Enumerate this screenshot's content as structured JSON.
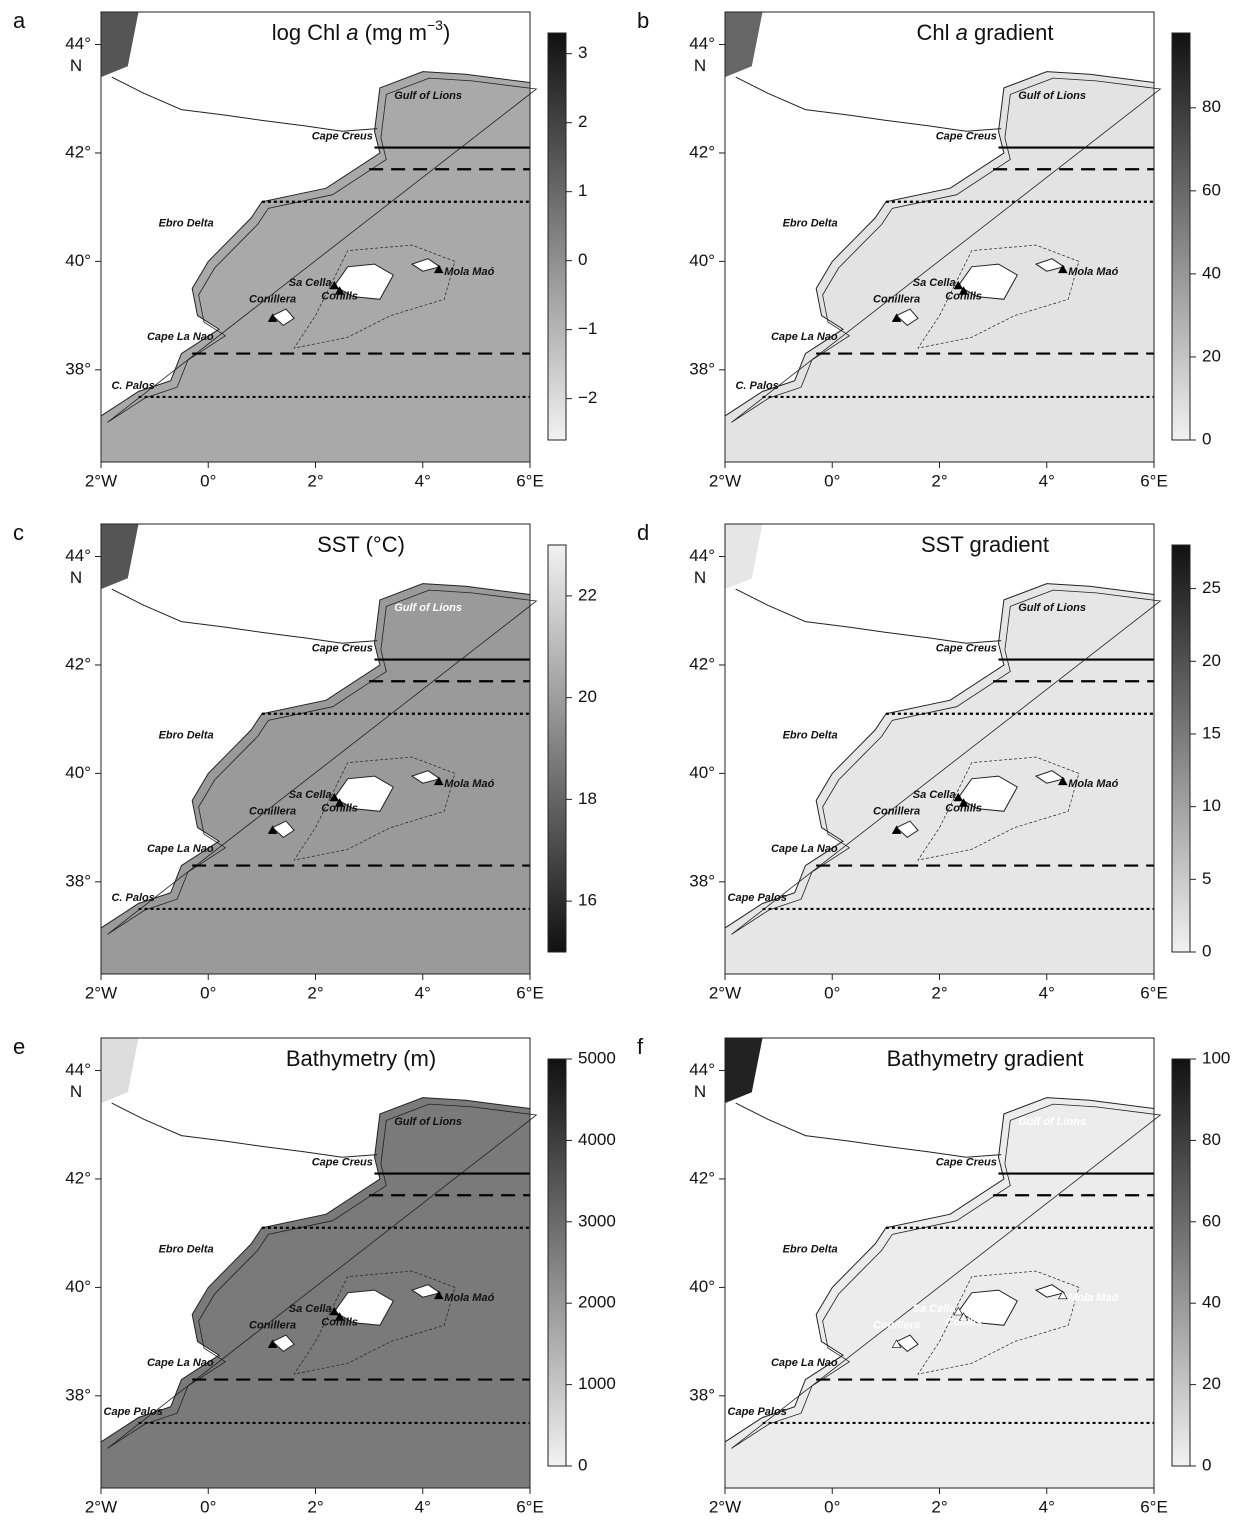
{
  "axes": {
    "xlim": [
      -2,
      6
    ],
    "ylim": [
      36.3,
      44.6
    ],
    "xticks": [
      {
        "value": -2,
        "label": "2°W"
      },
      {
        "value": 0,
        "label": "0°"
      },
      {
        "value": 2,
        "label": "2°"
      },
      {
        "value": 4,
        "label": "4°"
      },
      {
        "value": 6,
        "label": "6°E"
      }
    ],
    "yticks": [
      {
        "value": 38,
        "label": "38°"
      },
      {
        "value": 40,
        "label": "40°"
      },
      {
        "value": 42,
        "label": "42°"
      },
      {
        "value": 44,
        "label": "44°"
      }
    ],
    "y_unit": "N"
  },
  "panels": [
    {
      "letter": "a",
      "title": [
        {
          "text": "log Chl "
        },
        {
          "text": "a",
          "style": "italic"
        },
        {
          "text": " (mg m"
        },
        {
          "text": "−3",
          "style": "superscript"
        },
        {
          "text": ")"
        }
      ],
      "colorbar": {
        "lim": [
          -2.6,
          3.3
        ],
        "colormap": "light-to-dark",
        "ticks": [
          {
            "value": -2,
            "label": "−2"
          },
          {
            "value": -1,
            "label": "−1"
          },
          0,
          1,
          2,
          3
        ]
      },
      "places": [
        {
          "name": "Gulf of Lions"
        },
        {
          "name": "Cape Creus"
        },
        {
          "name": "Ebro Delta"
        },
        {
          "name": "Mola Maó"
        },
        {
          "name": "Sa Cella"
        },
        {
          "name": "Conills"
        },
        {
          "name": "Conillera"
        },
        {
          "name": "Cape La Nao"
        },
        {
          "name": "C. Palos"
        }
      ]
    },
    {
      "letter": "b",
      "title": [
        {
          "text": "Chl "
        },
        {
          "text": "a",
          "style": "italic"
        },
        {
          "text": " gradient"
        }
      ],
      "colorbar": {
        "lim": [
          0,
          98
        ],
        "colormap": "light-to-dark",
        "ticks": [
          0,
          20,
          40,
          60,
          80
        ]
      },
      "places": [
        {
          "name": "Gulf of Lions"
        },
        {
          "name": "Cape Creus"
        },
        {
          "name": "Ebro Delta"
        },
        {
          "name": "Mola Maó"
        },
        {
          "name": "Sa Cella"
        },
        {
          "name": "Conills"
        },
        {
          "name": "Conillera"
        },
        {
          "name": "Cape La Nao"
        },
        {
          "name": "C. Palos"
        }
      ]
    },
    {
      "letter": "c",
      "title": [
        {
          "text": "SST (°C)"
        }
      ],
      "colorbar": {
        "lim": [
          15,
          23
        ],
        "colormap": "dark-to-light",
        "ticks": [
          16,
          18,
          20,
          22
        ]
      },
      "places": [
        {
          "name": "Gulf of Lions",
          "color": "#ffffff"
        },
        {
          "name": "Cape Creus"
        },
        {
          "name": "Ebro Delta"
        },
        {
          "name": "Mola Maó"
        },
        {
          "name": "Sa Cella"
        },
        {
          "name": "Conills"
        },
        {
          "name": "Conillera"
        },
        {
          "name": "Cape La Nao"
        },
        {
          "name": "C. Palos"
        }
      ]
    },
    {
      "letter": "d",
      "title": [
        {
          "text": "SST gradient"
        }
      ],
      "colorbar": {
        "lim": [
          0,
          28
        ],
        "colormap": "light-to-dark",
        "ticks": [
          0,
          5,
          10,
          15,
          20,
          25
        ]
      },
      "places": [
        {
          "name": "Gulf of Lions"
        },
        {
          "name": "Cape Creus"
        },
        {
          "name": "Ebro Delta"
        },
        {
          "name": "Mola Maó"
        },
        {
          "name": "Sa Cella"
        },
        {
          "name": "Conills"
        },
        {
          "name": "Conillera"
        },
        {
          "name": "Cape La Nao"
        },
        {
          "name": "Cape Palos"
        }
      ]
    },
    {
      "letter": "e",
      "title": [
        {
          "text": "Bathymetry (m)"
        }
      ],
      "colorbar": {
        "lim": [
          0,
          5000
        ],
        "colormap": "light-to-dark",
        "ticks": [
          0,
          1000,
          2000,
          3000,
          4000,
          5000
        ]
      },
      "places": [
        {
          "name": "Gulf of Lions"
        },
        {
          "name": "Cape Creus"
        },
        {
          "name": "Ebro Delta"
        },
        {
          "name": "Mola Maó"
        },
        {
          "name": "Sa Cella"
        },
        {
          "name": "Conills"
        },
        {
          "name": "Conillera"
        },
        {
          "name": "Cape La Nao"
        },
        {
          "name": "Cape Palos"
        }
      ]
    },
    {
      "letter": "f",
      "title": [
        {
          "text": "Bathymetry gradient"
        }
      ],
      "colorbar": {
        "lim": [
          0,
          100
        ],
        "colormap": "light-to-dark",
        "ticks": [
          0,
          20,
          40,
          60,
          80,
          100
        ]
      },
      "places": [
        {
          "name": "Gulf of Lions",
          "color": "#ffffff"
        },
        {
          "name": "Cape Creus"
        },
        {
          "name": "Ebro Delta"
        },
        {
          "name": "Mola Maó",
          "color": "#ffffff"
        },
        {
          "name": "Sa Cella",
          "color": "#ffffff"
        },
        {
          "name": "Conills",
          "color": "#ffffff"
        },
        {
          "name": "Conillera",
          "color": "#ffffff"
        },
        {
          "name": "Cape La Nao"
        },
        {
          "name": "Cape Palos"
        }
      ]
    }
  ]
}
